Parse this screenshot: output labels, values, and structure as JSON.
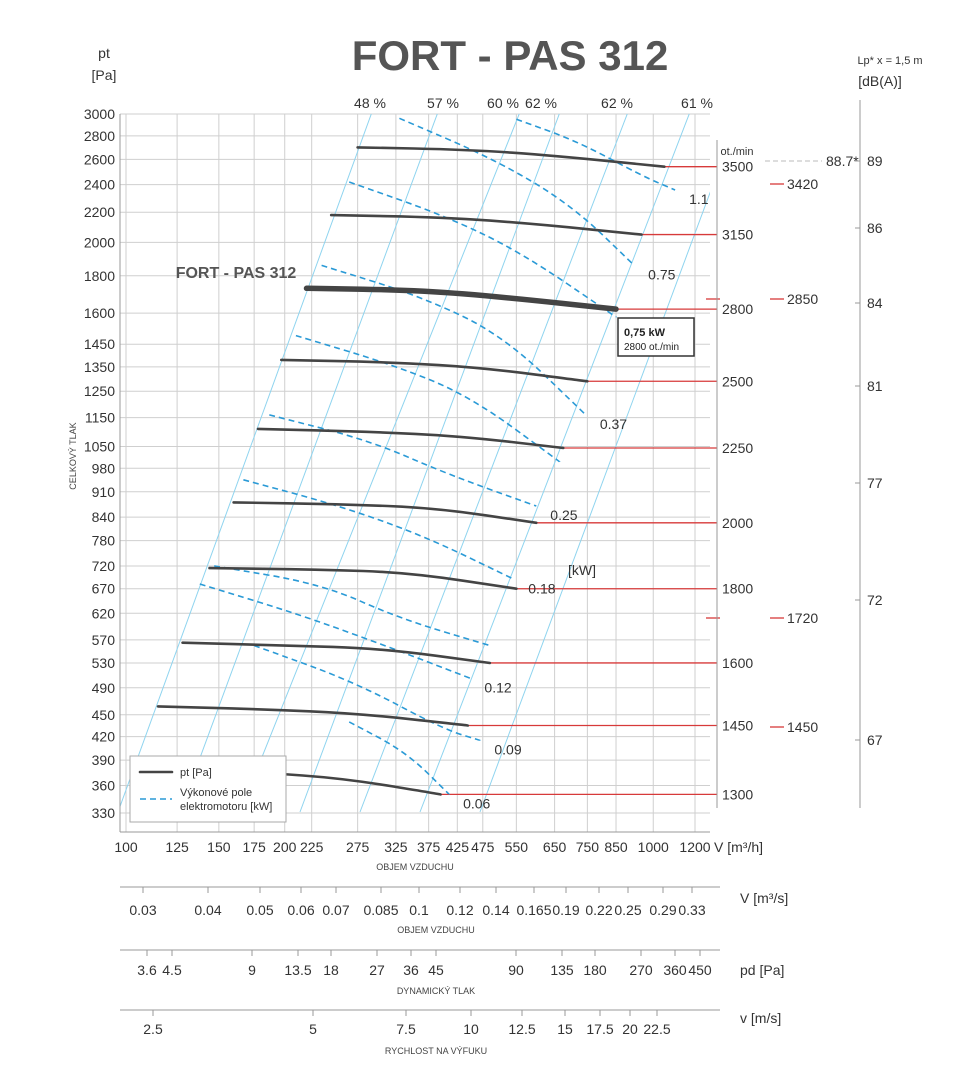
{
  "chart_data": {
    "type": "line",
    "title": "FORT - PAS 312",
    "curve_label": "FORT - PAS 312",
    "y_axis": {
      "label_top": "pt",
      "label_unit": "[Pa]",
      "title": "CELKOVÝ TLAK",
      "ticks": [
        3000,
        2800,
        2600,
        2400,
        2200,
        2000,
        1800,
        1600,
        1450,
        1350,
        1250,
        1150,
        1050,
        980,
        910,
        840,
        780,
        720,
        670,
        620,
        570,
        530,
        490,
        450,
        420,
        390,
        360,
        330
      ],
      "scale": "log"
    },
    "x_axis": {
      "label": "V [m³/h]",
      "title": "OBJEM VZDUCHU",
      "ticks": [
        100,
        125,
        150,
        175,
        200,
        225,
        275,
        325,
        375,
        425,
        475,
        550,
        650,
        750,
        850,
        1000,
        1200
      ],
      "scale": "log"
    },
    "sec_axes": [
      {
        "title": "OBJEM VZDUCHU",
        "unit": "V  [m³/s]",
        "ticks": [
          "0.03",
          "0.04",
          "0.05",
          "0.06",
          "0.07",
          "0.085",
          "0.1",
          "0.12",
          "0.14",
          "0.165",
          "0.19",
          "0.22",
          "0.25",
          "0.29",
          "0.33"
        ]
      },
      {
        "title": "DYNAMICKÝ TLAK",
        "unit": "pd  [Pa]",
        "ticks": [
          "3.6",
          "4.5",
          "9",
          "13.5",
          "18",
          "27",
          "36",
          "45",
          "90",
          "135",
          "180",
          "270",
          "360",
          "450"
        ]
      },
      {
        "title": "RYCHLOST NA VÝFUKU",
        "unit": "v  [m/s]",
        "ticks": [
          "2.5",
          "5",
          "7.5",
          "10",
          "12.5",
          "15",
          "17.5",
          "20",
          "22.5"
        ]
      }
    ],
    "efficiency_labels": [
      "48 %",
      "57 %",
      "60 %",
      "62 %",
      "62 %",
      "61 %"
    ],
    "speed_unit": "ot./min",
    "series": [
      {
        "rpm": "3500",
        "points": [
          [
            275,
            2700
          ],
          [
            450,
            2680
          ],
          [
            650,
            2630
          ],
          [
            1050,
            2540
          ]
        ]
      },
      {
        "rpm": "3150",
        "points": [
          [
            245,
            2180
          ],
          [
            400,
            2165
          ],
          [
            600,
            2120
          ],
          [
            950,
            2050
          ]
        ]
      },
      {
        "rpm": "2800",
        "bold": true,
        "points": [
          [
            220,
            1730
          ],
          [
            360,
            1720
          ],
          [
            530,
            1680
          ],
          [
            850,
            1620
          ]
        ]
      },
      {
        "rpm": "2500",
        "points": [
          [
            197,
            1380
          ],
          [
            320,
            1370
          ],
          [
            480,
            1345
          ],
          [
            750,
            1290
          ]
        ]
      },
      {
        "rpm": "2250",
        "points": [
          [
            178,
            1110
          ],
          [
            290,
            1100
          ],
          [
            430,
            1085
          ],
          [
            675,
            1045
          ]
        ]
      },
      {
        "rpm": "2000",
        "points": [
          [
            160,
            880
          ],
          [
            255,
            875
          ],
          [
            385,
            865
          ],
          [
            600,
            825
          ]
        ]
      },
      {
        "rpm": "1800",
        "points": [
          [
            144,
            715
          ],
          [
            230,
            712
          ],
          [
            345,
            705
          ],
          [
            550,
            670
          ]
        ]
      },
      {
        "rpm": "1600",
        "points": [
          [
            128,
            565
          ],
          [
            200,
            560
          ],
          [
            305,
            555
          ],
          [
            490,
            530
          ]
        ]
      },
      {
        "rpm": "1450",
        "points": [
          [
            115,
            462
          ],
          [
            180,
            458
          ],
          [
            275,
            452
          ],
          [
            445,
            435
          ]
        ]
      },
      {
        "rpm": "1300",
        "points": [
          [
            180,
            375
          ],
          [
            260,
            368
          ],
          [
            395,
            350
          ]
        ]
      }
    ],
    "motor_power": {
      "label": "[kW]",
      "curves": [
        {
          "kw": "1.1",
          "points": [
            [
              550,
              2950
            ],
            [
              720,
              2750
            ],
            [
              950,
              2470
            ],
            [
              1100,
              2360
            ]
          ]
        },
        {
          "kw": "0.75",
          "points": [
            [
              330,
              2960
            ],
            [
              500,
              2600
            ],
            [
              700,
              2250
            ],
            [
              920,
              1860
            ]
          ]
        },
        {
          "kw": "",
          "points": [
            [
              265,
              2420
            ],
            [
              400,
              2180
            ],
            [
              560,
              1940
            ],
            [
              850,
              1580
            ]
          ]
        },
        {
          "kw": "0.37",
          "points": [
            [
              235,
              1860
            ],
            [
              360,
              1690
            ],
            [
              520,
              1490
            ],
            [
              745,
              1160
            ]
          ]
        },
        {
          "kw": "",
          "points": [
            [
              210,
              1490
            ],
            [
              320,
              1360
            ],
            [
              450,
              1230
            ],
            [
              665,
              1000
            ]
          ]
        },
        {
          "kw": "0.25",
          "points": [
            [
              187,
              1160
            ],
            [
              290,
              1070
            ],
            [
              410,
              960
            ],
            [
              600,
              870
            ]
          ]
        },
        {
          "kw": "0.18",
          "points": [
            [
              167,
              945
            ],
            [
              255,
              870
            ],
            [
              370,
              790
            ],
            [
              545,
              690
            ]
          ]
        },
        {
          "kw": "",
          "points": [
            [
              147,
              720
            ],
            [
              235,
              680
            ],
            [
              330,
              610
            ],
            [
              490,
              560
            ]
          ]
        },
        {
          "kw": "0.12",
          "points": [
            [
              138,
              680
            ],
            [
              210,
              620
            ],
            [
              310,
              560
            ],
            [
              450,
              505
            ]
          ]
        },
        {
          "kw": "0.09",
          "points": [
            [
              175,
              560
            ],
            [
              270,
              500
            ],
            [
              400,
              430
            ],
            [
              470,
              415
            ]
          ]
        },
        {
          "kw": "0.06",
          "points": [
            [
              265,
              440
            ],
            [
              340,
              400
            ],
            [
              410,
              350
            ]
          ]
        }
      ]
    },
    "operating_point": {
      "line1": "0,75 kW",
      "line2": "2800 ot./min"
    },
    "noise": {
      "label_top": "Lp* x = 1,5 m",
      "label_unit": "[dB(A)]",
      "asterisk_value": "88.7*",
      "rpm_markers": [
        "3420",
        "2850",
        "1720",
        "1450"
      ],
      "db_values": [
        "89",
        "86",
        "84",
        "81",
        "77",
        "72",
        "67"
      ]
    },
    "legend": {
      "position": "bottom-left",
      "pt_label": "pt [Pa]",
      "power_line1": "Výkonové pole",
      "power_line2": "elektromotoru  [kW]"
    }
  }
}
